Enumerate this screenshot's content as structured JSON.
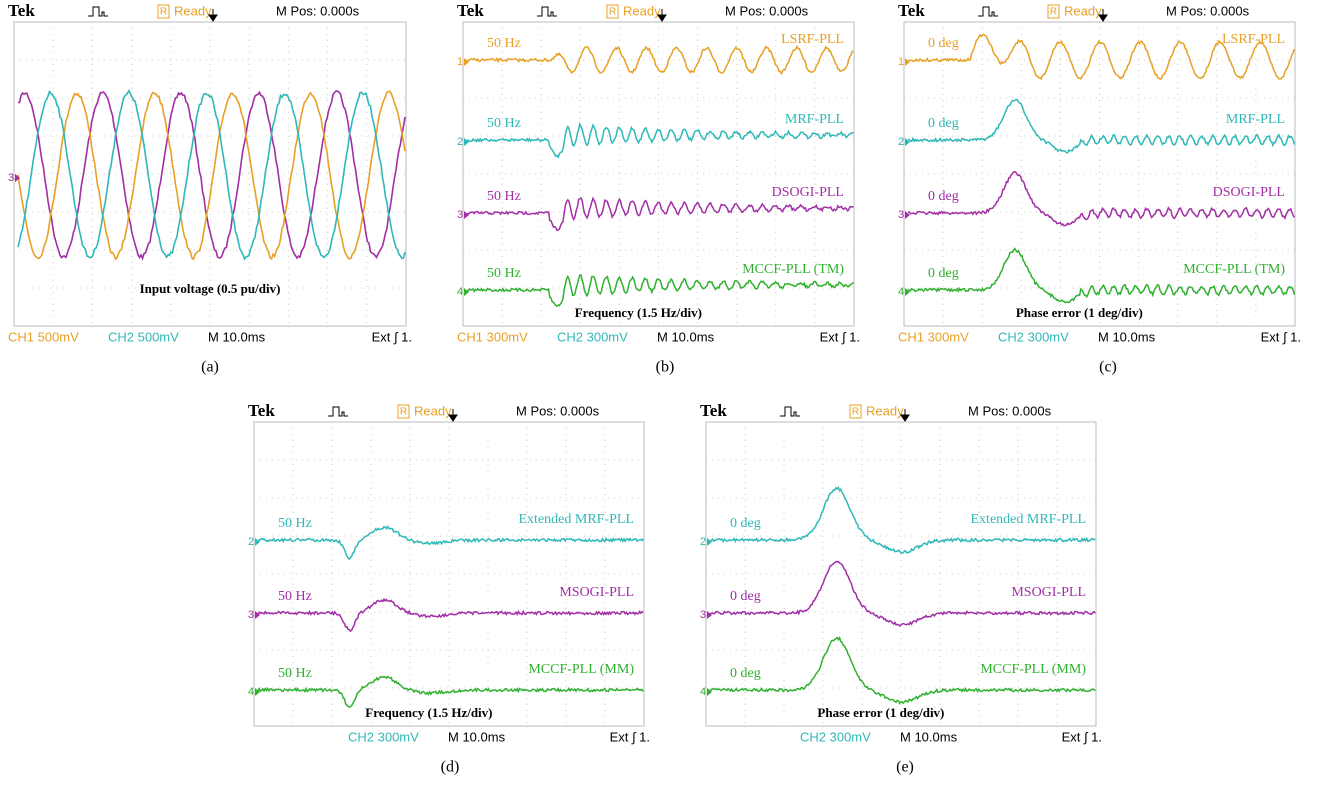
{
  "panels": [
    {
      "label": "(a)",
      "header": {
        "brand": "Tek",
        "icon": "R",
        "status": "Ready",
        "mpos": "M Pos: 0.000s"
      },
      "footer": {
        "ch1": "CH1 500mV",
        "ch2": "CH2 500mV",
        "timebase": "M 10.0ms",
        "trigger": "Ext ∫ 1."
      },
      "note": "Input voltage (0.5 pu/div)",
      "traces": [
        {
          "marker": "3"
        }
      ]
    },
    {
      "label": "(b)",
      "header": {
        "brand": "Tek",
        "icon": "R",
        "status": "Ready",
        "mpos": "M Pos: 0.000s"
      },
      "footer": {
        "ch1": "CH1 300mV",
        "ch2": "CH2 300mV",
        "timebase": "M 10.0ms",
        "trigger": "Ext ∫ 1."
      },
      "note": "Frequency (1.5 Hz/div)",
      "traces": [
        {
          "marker": "1",
          "left": "50 Hz",
          "right": "LSRF-PLL"
        },
        {
          "marker": "2",
          "left": "50 Hz",
          "right": "MRF-PLL"
        },
        {
          "marker": "3",
          "left": "50 Hz",
          "right": "DSOGI-PLL"
        },
        {
          "marker": "4",
          "left": "50 Hz",
          "right": "MCCF-PLL (TM)"
        }
      ]
    },
    {
      "label": "(c)",
      "header": {
        "brand": "Tek",
        "icon": "R",
        "status": "Ready",
        "mpos": "M Pos: 0.000s"
      },
      "footer": {
        "ch1": "CH1 300mV",
        "ch2": "CH2 300mV",
        "timebase": "M 10.0ms",
        "trigger": "Ext ∫ 1."
      },
      "note": "Phase error (1 deg/div)",
      "traces": [
        {
          "marker": "1",
          "left": "0 deg",
          "right": "LSRF-PLL"
        },
        {
          "marker": "2",
          "left": "0 deg",
          "right": "MRF-PLL"
        },
        {
          "marker": "3",
          "left": "0 deg",
          "right": "DSOGI-PLL"
        },
        {
          "marker": "4",
          "left": "0 deg",
          "right": "MCCF-PLL (TM)"
        }
      ]
    },
    {
      "label": "(d)",
      "header": {
        "brand": "Tek",
        "icon": "R",
        "status": "Ready",
        "mpos": "M Pos: 0.000s"
      },
      "footer": {
        "ch2": "CH2 300mV",
        "timebase": "M 10.0ms",
        "trigger": "Ext ∫ 1."
      },
      "note": "Frequency (1.5 Hz/div)",
      "traces": [
        {
          "marker": "2",
          "left": "50 Hz",
          "right": "Extended MRF-PLL"
        },
        {
          "marker": "3",
          "left": "50 Hz",
          "right": "MSOGI-PLL"
        },
        {
          "marker": "4",
          "left": "50 Hz",
          "right": "MCCF-PLL (MM)"
        }
      ]
    },
    {
      "label": "(e)",
      "header": {
        "brand": "Tek",
        "icon": "R",
        "status": "Ready",
        "mpos": "M Pos: 0.000s"
      },
      "footer": {
        "ch2": "CH2 300mV",
        "timebase": "M 10.0ms",
        "trigger": "Ext ∫ 1."
      },
      "note": "Phase error (1 deg/div)",
      "traces": [
        {
          "marker": "2",
          "left": "0 deg",
          "right": "Extended MRF-PLL"
        },
        {
          "marker": "3",
          "left": "0 deg",
          "right": "MSOGI-PLL"
        },
        {
          "marker": "4",
          "left": "0 deg",
          "right": "MCCF-PLL (MM)"
        }
      ]
    }
  ]
}
